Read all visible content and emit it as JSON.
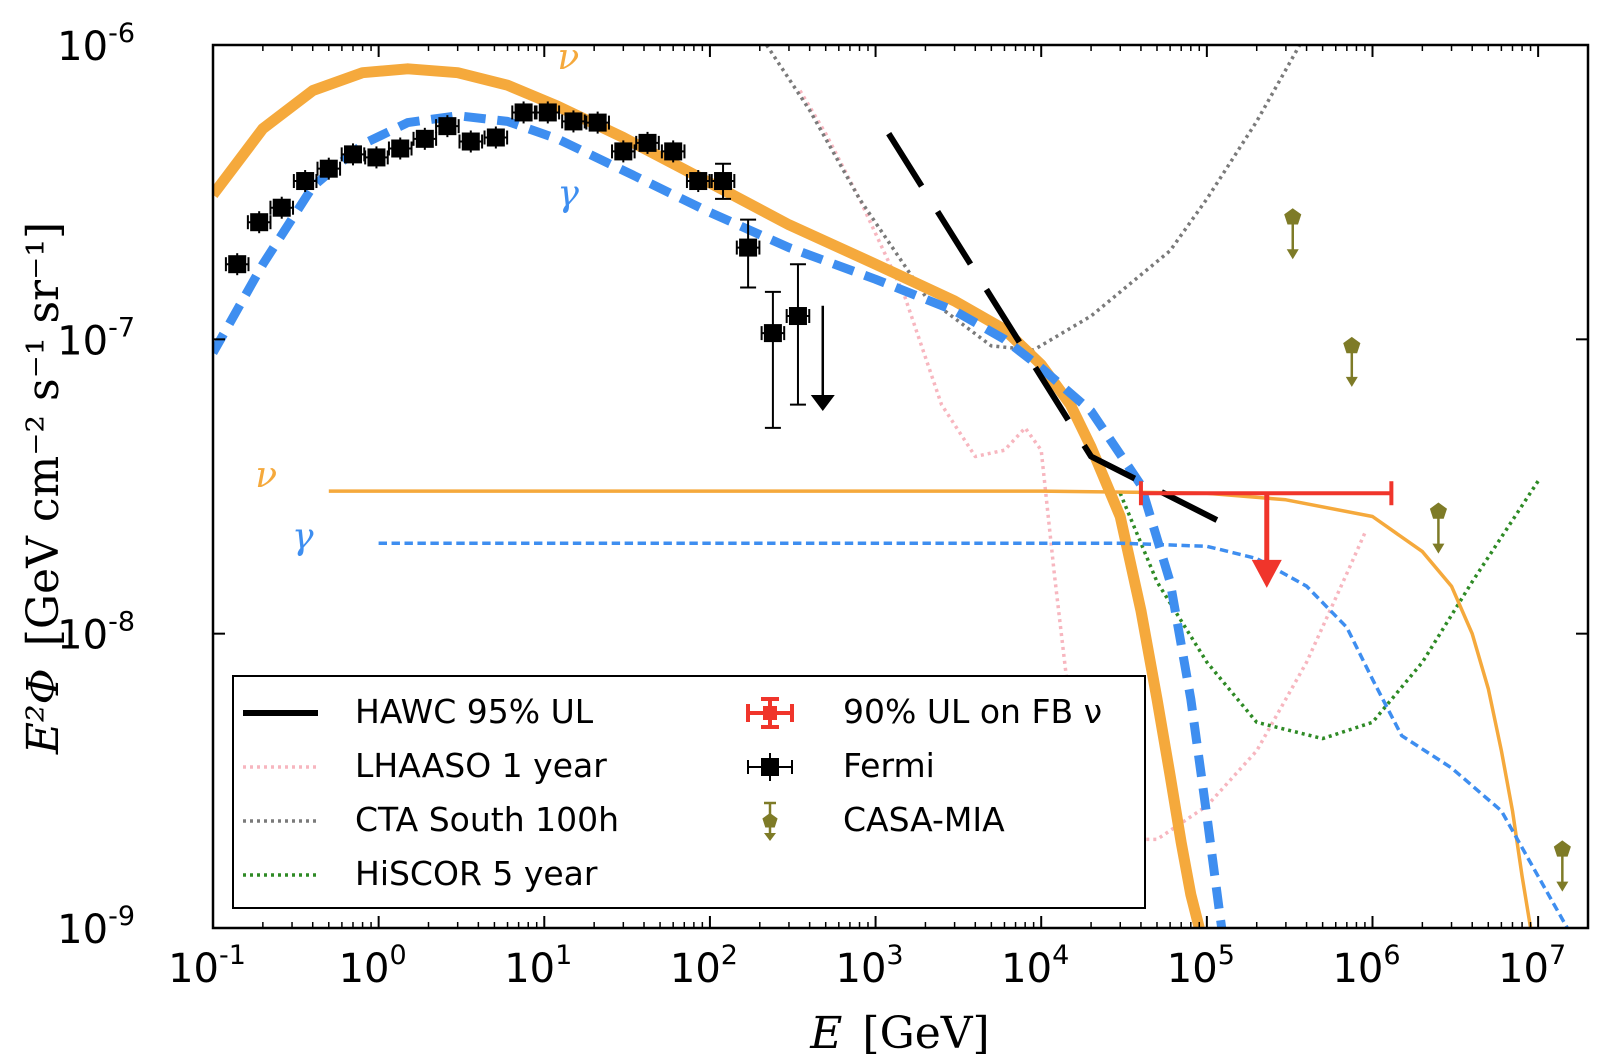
{
  "chart_data": {
    "type": "line",
    "xscale": "log",
    "yscale": "log",
    "xlim": [
      0.1,
      20000000
    ],
    "ylim": [
      1e-09,
      1e-06
    ],
    "xlabel": {
      "var": "E",
      "unit": "[GeV]"
    },
    "ylabel": {
      "var": "E²Φ",
      "unit": "[GeV cm⁻² s⁻¹ sr⁻¹]"
    },
    "x_ticks": [
      {
        "value": 0.1,
        "base": "10",
        "exp": "-1"
      },
      {
        "value": 1,
        "base": "10",
        "exp": "0"
      },
      {
        "value": 10,
        "base": "10",
        "exp": "1"
      },
      {
        "value": 100,
        "base": "10",
        "exp": "2"
      },
      {
        "value": 1000,
        "base": "10",
        "exp": "3"
      },
      {
        "value": 10000,
        "base": "10",
        "exp": "4"
      },
      {
        "value": 100000,
        "base": "10",
        "exp": "5"
      },
      {
        "value": 1000000,
        "base": "10",
        "exp": "6"
      },
      {
        "value": 10000000,
        "base": "10",
        "exp": "7"
      }
    ],
    "y_ticks": [
      {
        "value": 1e-06,
        "base": "10",
        "exp": "-6"
      },
      {
        "value": 1e-07,
        "base": "10",
        "exp": "-7"
      },
      {
        "value": 1e-08,
        "base": "10",
        "exp": "-8"
      },
      {
        "value": 1e-09,
        "base": "10",
        "exp": "-9"
      }
    ],
    "curve_labels": [
      {
        "text": "ν",
        "x": 12,
        "y": 8.3e-07,
        "color": "#f5a93c"
      },
      {
        "text": "γ",
        "x": 12,
        "y": 2.85e-07,
        "color": "#3e8ef0"
      },
      {
        "text": "ν",
        "x": 0.18,
        "y": 3.15e-08,
        "color": "#f5a93c"
      },
      {
        "text": "γ",
        "x": 0.3,
        "y": 1.95e-08,
        "color": "#3e8ef0"
      }
    ],
    "series": [
      {
        "name": "",
        "style": "solid",
        "color": "#f5a93c",
        "width": 11,
        "points": [
          [
            0.1,
            3.1e-07
          ],
          [
            0.2,
            5.2e-07
          ],
          [
            0.4,
            7e-07
          ],
          [
            0.8,
            8.05e-07
          ],
          [
            1.5,
            8.3e-07
          ],
          [
            3,
            8.05e-07
          ],
          [
            6,
            7.3e-07
          ],
          [
            12,
            6.2e-07
          ],
          [
            30,
            4.85e-07
          ],
          [
            100,
            3.4e-07
          ],
          [
            300,
            2.45e-07
          ],
          [
            1000,
            1.8e-07
          ],
          [
            3000,
            1.35e-07
          ],
          [
            6000,
            1.08e-07
          ],
          [
            10000,
            8.2e-08
          ],
          [
            15000,
            6e-08
          ],
          [
            20000,
            4.3e-08
          ],
          [
            30000,
            2.5e-08
          ],
          [
            40000,
            1.2e-08
          ],
          [
            50000,
            6e-09
          ],
          [
            60000,
            3.3e-09
          ],
          [
            70000,
            1.95e-09
          ],
          [
            80000,
            1.3e-09
          ],
          [
            90000,
            1e-09
          ]
        ]
      },
      {
        "name": "",
        "style": "dashed",
        "color": "#3e8ef0",
        "width": 9,
        "points": [
          [
            0.1,
            9e-08
          ],
          [
            0.2,
            1.8e-07
          ],
          [
            0.4,
            3.3e-07
          ],
          [
            0.8,
            4.6e-07
          ],
          [
            1.5,
            5.45e-07
          ],
          [
            3,
            5.75e-07
          ],
          [
            6,
            5.5e-07
          ],
          [
            12,
            4.8e-07
          ],
          [
            30,
            3.75e-07
          ],
          [
            100,
            2.7e-07
          ],
          [
            300,
            2.05e-07
          ],
          [
            1000,
            1.6e-07
          ],
          [
            3000,
            1.25e-07
          ],
          [
            6000,
            1e-07
          ],
          [
            10000,
            8e-08
          ],
          [
            20000,
            5.7e-08
          ],
          [
            40000,
            3.2e-08
          ],
          [
            60000,
            1.5e-08
          ],
          [
            80000,
            6e-09
          ],
          [
            100000,
            2.4e-09
          ],
          [
            120000,
            1.1e-09
          ],
          [
            130000,
            8e-10
          ]
        ]
      },
      {
        "name": "",
        "style": "solid",
        "color": "#f5a93c",
        "width": 3.5,
        "points": [
          [
            0.5,
            3.05e-08
          ],
          [
            10000,
            3.05e-08
          ],
          [
            100000,
            3e-08
          ],
          [
            300000,
            2.85e-08
          ],
          [
            1000000,
            2.5e-08
          ],
          [
            2000000,
            1.9e-08
          ],
          [
            3000000,
            1.45e-08
          ],
          [
            4000000,
            1e-08
          ],
          [
            5000000,
            6.5e-09
          ],
          [
            6000000,
            4e-09
          ],
          [
            7000000,
            2.5e-09
          ],
          [
            8000000,
            1.5e-09
          ],
          [
            9000000,
            1e-09
          ]
        ]
      },
      {
        "name": "",
        "style": "dashed",
        "color": "#3e8ef0",
        "width": 3.5,
        "points": [
          [
            1,
            2.03e-08
          ],
          [
            30000,
            2.03e-08
          ],
          [
            100000,
            1.98e-08
          ],
          [
            200000,
            1.8e-08
          ],
          [
            400000,
            1.45e-08
          ],
          [
            700000,
            1.05e-08
          ],
          [
            1000000,
            7e-09
          ],
          [
            1500000,
            4.5e-09
          ],
          [
            3000000,
            3.5e-09
          ],
          [
            6000000,
            2.5e-09
          ],
          [
            10000000,
            1.5e-09
          ],
          [
            15000000,
            1e-09
          ],
          [
            20000000,
            8e-10
          ]
        ]
      },
      {
        "name": "HAWC 95% UL",
        "style": "dashed-long",
        "color": "#000000",
        "width": 6,
        "points": [
          [
            1200,
            5e-07
          ],
          [
            20000,
            4e-08
          ],
          [
            140000,
            2.3e-08
          ]
        ]
      },
      {
        "name": "LHAASO 1 year",
        "style": "dotted",
        "color": "#f7b6bf",
        "width": 3.5,
        "points": [
          [
            350,
            7e-07
          ],
          [
            500,
            5e-07
          ],
          [
            800,
            3e-07
          ],
          [
            1500,
            1.4e-07
          ],
          [
            2500,
            6e-08
          ],
          [
            4000,
            4e-08
          ],
          [
            6000,
            4.2e-08
          ],
          [
            8000,
            5e-08
          ],
          [
            10000,
            4.2e-08
          ],
          [
            12000,
            1.6e-08
          ],
          [
            16000,
            4e-09
          ],
          [
            25000,
            2e-09
          ],
          [
            50000,
            2e-09
          ],
          [
            100000,
            2.6e-09
          ],
          [
            200000,
            4e-09
          ],
          [
            400000,
            8e-09
          ],
          [
            700000,
            1.6e-08
          ],
          [
            900000,
            2.2e-08
          ]
        ]
      },
      {
        "name": "CTA South 100h",
        "style": "dotted",
        "color": "#7a7a7a",
        "width": 3.5,
        "points": [
          [
            220,
            1e-06
          ],
          [
            400,
            6e-07
          ],
          [
            800,
            3e-07
          ],
          [
            2000,
            1.4e-07
          ],
          [
            5000,
            9.5e-08
          ],
          [
            9000,
            9.2e-08
          ],
          [
            20000,
            1.2e-07
          ],
          [
            60000,
            2e-07
          ],
          [
            100000,
            3e-07
          ],
          [
            200000,
            5.5e-07
          ],
          [
            400000,
            1.1e-06
          ]
        ]
      },
      {
        "name": "HiSCOR 5 year",
        "style": "dotted",
        "color": "#2e8a25",
        "width": 3.5,
        "points": [
          [
            30000,
            3e-08
          ],
          [
            50000,
            1.5e-08
          ],
          [
            100000,
            8e-09
          ],
          [
            200000,
            5e-09
          ],
          [
            500000,
            4.4e-09
          ],
          [
            1000000,
            5e-09
          ],
          [
            2000000,
            8e-09
          ],
          [
            4000000,
            1.5e-08
          ],
          [
            10000000,
            3.3e-08
          ]
        ]
      }
    ],
    "fermi": {
      "name": "Fermi",
      "color": "#000000",
      "points": [
        {
          "x": 0.14,
          "y": 1.8e-07
        },
        {
          "x": 0.19,
          "y": 2.5e-07
        },
        {
          "x": 0.26,
          "y": 2.8e-07
        },
        {
          "x": 0.36,
          "y": 3.45e-07
        },
        {
          "x": 0.5,
          "y": 3.8e-07
        },
        {
          "x": 0.7,
          "y": 4.25e-07
        },
        {
          "x": 0.97,
          "y": 4.15e-07
        },
        {
          "x": 1.35,
          "y": 4.45e-07
        },
        {
          "x": 1.9,
          "y": 4.8e-07
        },
        {
          "x": 2.6,
          "y": 5.3e-07
        },
        {
          "x": 3.6,
          "y": 4.7e-07
        },
        {
          "x": 5.1,
          "y": 4.85e-07
        },
        {
          "x": 7.5,
          "y": 5.9e-07
        },
        {
          "x": 10.5,
          "y": 5.9e-07
        },
        {
          "x": 15,
          "y": 5.5e-07
        },
        {
          "x": 21,
          "y": 5.45e-07
        },
        {
          "x": 30,
          "y": 4.35e-07
        },
        {
          "x": 42,
          "y": 4.65e-07
        },
        {
          "x": 60,
          "y": 4.35e-07
        },
        {
          "x": 85,
          "y": 3.45e-07
        },
        {
          "x": 120,
          "y": 3.45e-07,
          "ylo": 3e-07,
          "yhi": 3.95e-07
        },
        {
          "x": 170,
          "y": 2.05e-07,
          "ylo": 1.5e-07,
          "yhi": 2.55e-07
        },
        {
          "x": 240,
          "y": 1.05e-07,
          "ylo": 5e-08,
          "yhi": 1.45e-07
        },
        {
          "x": 340,
          "y": 1.2e-07,
          "ylo": 6e-08,
          "yhi": 1.8e-07
        }
      ],
      "upper_limit": {
        "x": 480,
        "y": 1.3e-07,
        "to": 5.8e-08
      }
    },
    "casa_mia": {
      "name": "CASA-MIA",
      "color": "#7e7b27",
      "points": [
        {
          "x": 330000,
          "y": 2.6e-07,
          "to": 1.9e-07
        },
        {
          "x": 750000,
          "y": 9.5e-08,
          "to": 7e-08
        },
        {
          "x": 2500000,
          "y": 2.6e-08,
          "to": 1.9e-08
        },
        {
          "x": 14000000,
          "y": 1.85e-09,
          "to": 1.35e-09
        }
      ]
    },
    "fb_ul": {
      "name": "90% UL on FB ν",
      "color": "#f0352b",
      "y": 3e-08,
      "x_min": 40000,
      "x_max": 1300000,
      "x_center": 230000,
      "arrow_to": 1.5e-08
    },
    "legend": {
      "placement": "lower-left",
      "left_column": [
        "HAWC 95% UL",
        "LHAASO 1 year",
        "CTA South 100h",
        "HiSCOR 5 year"
      ],
      "right_column": [
        "90% UL on FB ν",
        "Fermi",
        "CASA-MIA"
      ]
    },
    "grid": false
  }
}
